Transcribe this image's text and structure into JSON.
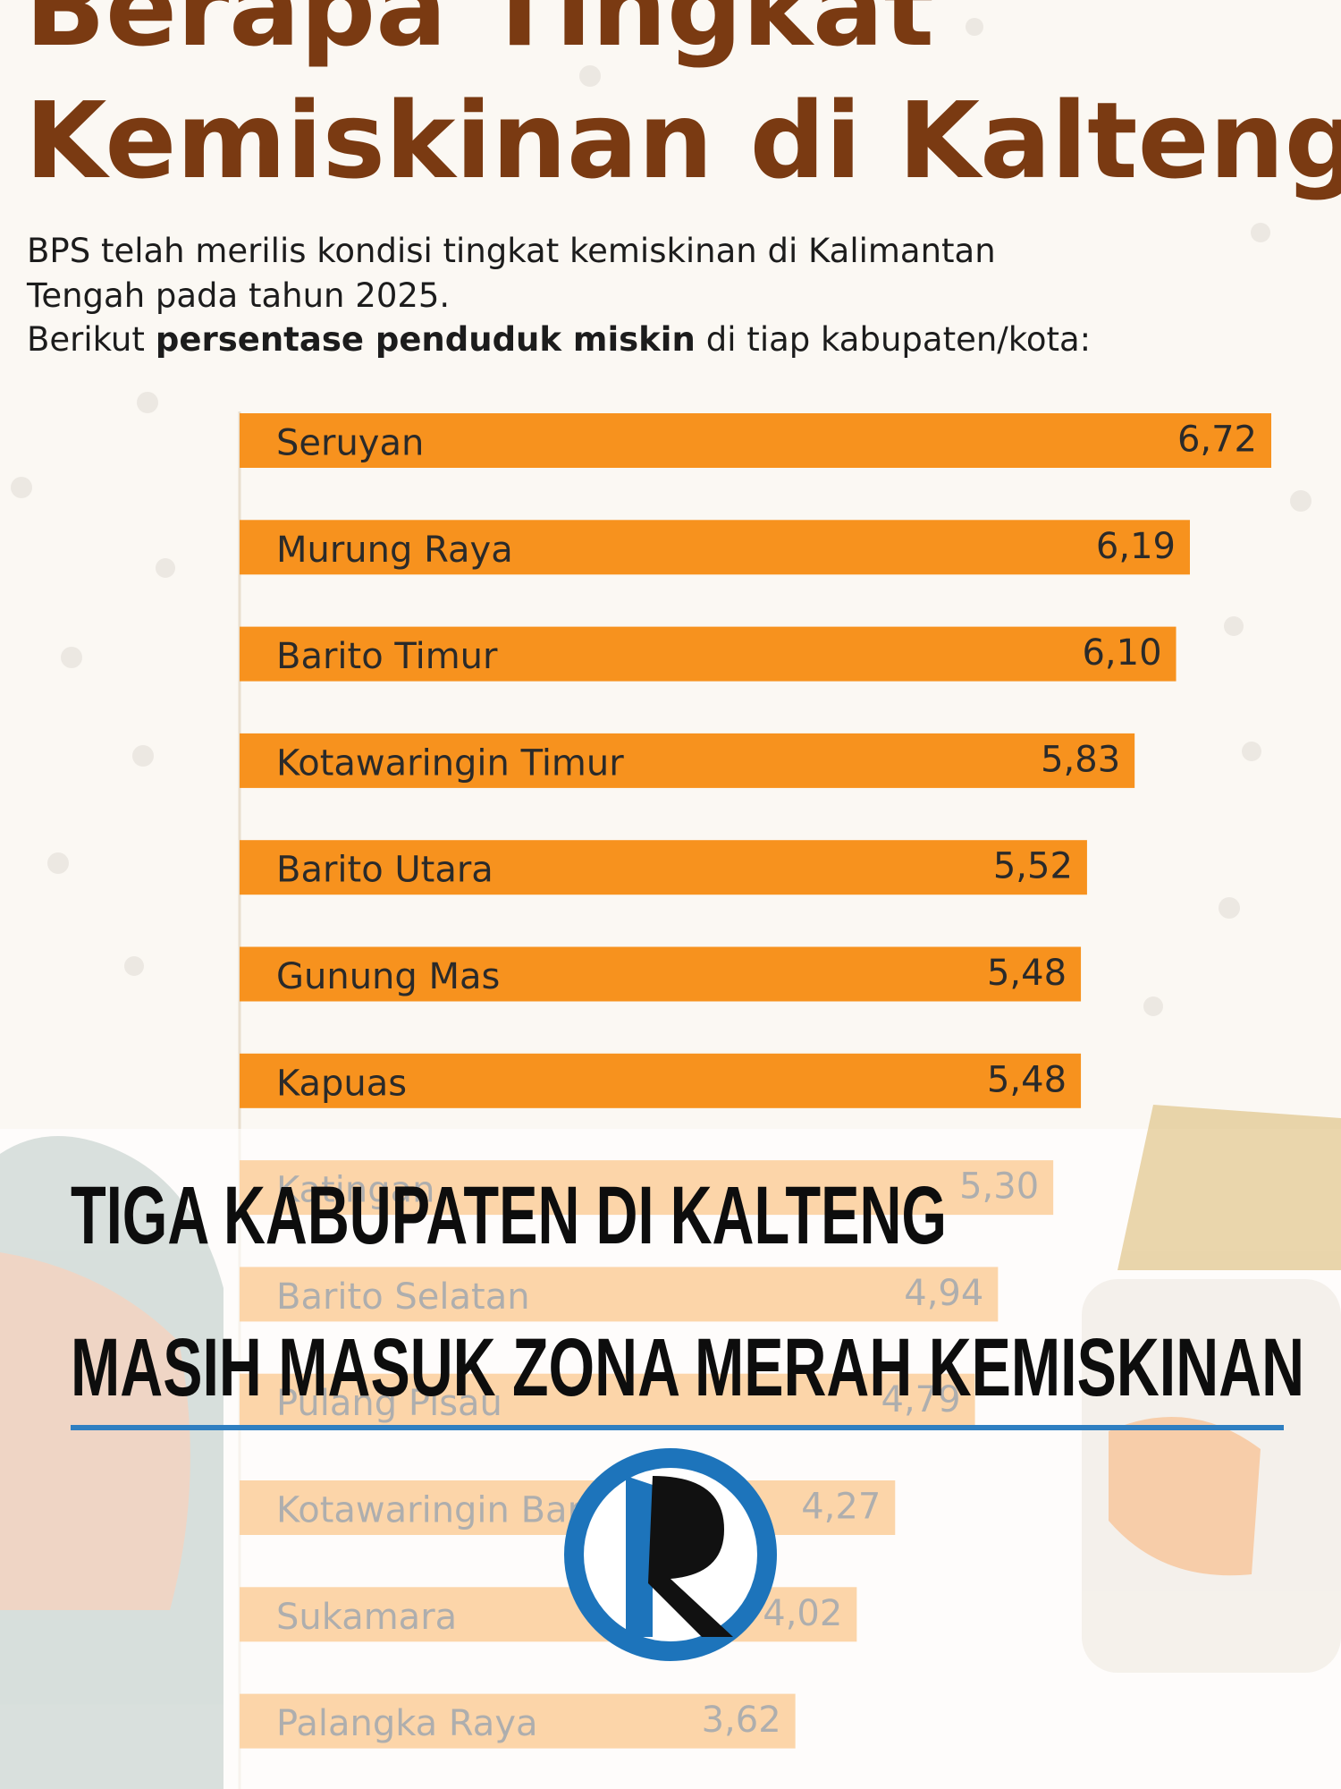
{
  "chart_data": {
    "type": "bar",
    "orientation": "horizontal",
    "title_lines": [
      "Berapa Tingkat",
      "Kemiskinan di Kalteng?"
    ],
    "intro_lines": [
      "BPS telah merilis kondisi tingkat kemiskinan di Kalimantan",
      "Tengah pada tahun 2025."
    ],
    "lead": [
      "Berikut",
      "persentase penduduk miskin",
      "di tiap kabupaten/kota:"
    ],
    "categories": [
      "Seruyan",
      "Murung Raya",
      "Barito Timur",
      "Kotawaringin Timur",
      "Barito Utara",
      "Gunung Mas",
      "Kapuas",
      "Katingan",
      "Barito Selatan",
      "Pulang Pisau",
      "Kotawaringin Barat",
      "Sukamara",
      "Palangka Raya"
    ],
    "values": [
      6.72,
      6.19,
      6.1,
      5.83,
      5.52,
      5.48,
      5.48,
      5.3,
      4.94,
      4.79,
      4.27,
      4.02,
      3.62
    ],
    "value_labels": [
      "6,72",
      "6,19",
      "6,10",
      "5,83",
      "5,52",
      "5,48",
      "5,48",
      "5,30",
      "4,94",
      "4,79",
      "4,27",
      "4,02",
      "3,62"
    ],
    "color": "#f7921e",
    "headline": [
      "TIGA KABUPATEN DI KALTENG",
      "MASIH MASUK ZONA MERAH KEMISKINAN"
    ]
  }
}
